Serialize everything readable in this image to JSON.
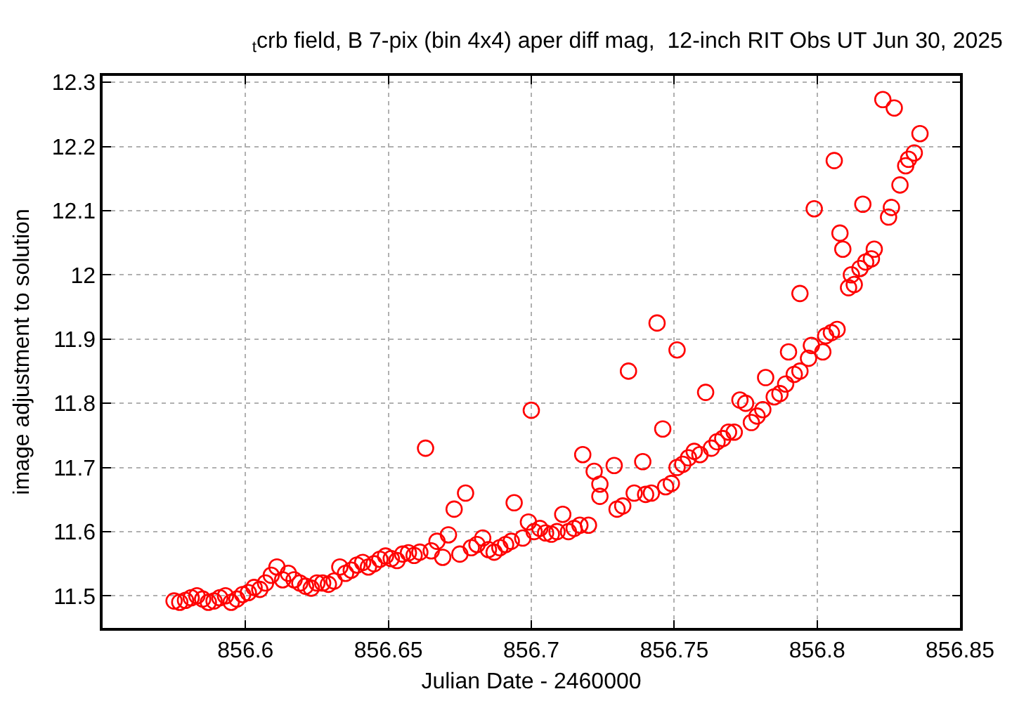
{
  "chart_data": {
    "type": "scatter",
    "title": "$_{t}$crb field, B 7-pix (bin 4x4) aper diff mag,  12-inch RIT Obs UT Jun 30, 2025",
    "xlabel": "Julian Date - 2460000",
    "ylabel": "image adjustment to solution",
    "x": [
      856.575,
      856.577,
      856.579,
      856.581,
      856.583,
      856.585,
      856.587,
      856.589,
      856.591,
      856.593,
      856.595,
      856.597,
      856.599,
      856.601,
      856.603,
      856.605,
      856.607,
      856.609,
      856.611,
      856.613,
      856.615,
      856.617,
      856.619,
      856.621,
      856.623,
      856.625,
      856.627,
      856.629,
      856.631,
      856.633,
      856.635,
      856.637,
      856.639,
      856.641,
      856.643,
      856.645,
      856.647,
      856.649,
      856.651,
      856.653,
      856.655,
      856.657,
      856.659,
      856.661,
      856.663,
      856.665,
      856.667,
      856.669,
      856.671,
      856.673,
      856.675,
      856.677,
      856.679,
      856.681,
      856.683,
      856.685,
      856.687,
      856.689,
      856.691,
      856.693,
      856.694,
      856.697,
      856.699,
      856.7,
      856.701,
      856.703,
      856.705,
      856.707,
      856.709,
      856.711,
      856.713,
      856.715,
      856.717,
      856.718,
      856.72,
      856.722,
      856.724,
      856.724,
      856.729,
      856.73,
      856.732,
      856.734,
      856.736,
      856.739,
      856.74,
      856.742,
      856.744,
      856.746,
      856.747,
      856.749,
      856.751,
      856.751,
      856.753,
      856.755,
      856.757,
      856.759,
      856.761,
      856.763,
      856.765,
      856.767,
      856.769,
      856.771,
      856.773,
      856.775,
      856.777,
      856.779,
      856.781,
      856.782,
      856.785,
      856.787,
      856.789,
      856.79,
      856.792,
      856.794,
      856.794,
      856.797,
      856.798,
      856.799,
      856.802,
      856.803,
      856.805,
      856.806,
      856.807,
      856.808,
      856.809,
      856.811,
      856.812,
      856.813,
      856.815,
      856.816,
      856.817,
      856.819,
      856.82,
      856.823,
      856.825,
      856.826,
      856.827,
      856.829,
      856.831,
      856.832,
      856.834,
      856.836
    ],
    "values": [
      11.492,
      11.49,
      11.493,
      11.497,
      11.5,
      11.495,
      11.49,
      11.492,
      11.497,
      11.5,
      11.49,
      11.495,
      11.502,
      11.505,
      11.513,
      11.51,
      11.52,
      11.532,
      11.545,
      11.525,
      11.535,
      11.525,
      11.52,
      11.515,
      11.512,
      11.52,
      11.52,
      11.518,
      11.523,
      11.545,
      11.535,
      11.54,
      11.548,
      11.552,
      11.545,
      11.55,
      11.557,
      11.562,
      11.558,
      11.555,
      11.565,
      11.567,
      11.563,
      11.568,
      11.73,
      11.57,
      11.585,
      11.56,
      11.595,
      11.635,
      11.565,
      11.66,
      11.575,
      11.58,
      11.59,
      11.572,
      11.568,
      11.575,
      11.58,
      11.585,
      11.645,
      11.59,
      11.615,
      11.789,
      11.6,
      11.605,
      11.598,
      11.596,
      11.6,
      11.627,
      11.6,
      11.605,
      11.61,
      11.72,
      11.61,
      11.694,
      11.655,
      11.674,
      11.703,
      11.635,
      11.64,
      11.85,
      11.66,
      11.709,
      11.658,
      11.66,
      11.925,
      11.76,
      11.67,
      11.675,
      11.7,
      11.883,
      11.705,
      11.715,
      11.725,
      11.72,
      11.817,
      11.73,
      11.74,
      11.745,
      11.755,
      11.755,
      11.805,
      11.8,
      11.77,
      11.78,
      11.79,
      11.84,
      11.81,
      11.815,
      11.83,
      11.88,
      11.845,
      11.85,
      11.971,
      11.87,
      11.89,
      12.103,
      11.88,
      11.905,
      11.91,
      12.178,
      11.915,
      12.065,
      12.04,
      11.98,
      12.0,
      11.985,
      12.01,
      12.11,
      12.02,
      12.025,
      12.04,
      12.273,
      12.09,
      12.105,
      12.26,
      12.14,
      12.17,
      12.18,
      12.19,
      12.22
    ],
    "color": "#ff0000",
    "marker": "circle",
    "grid": true,
    "legend": false,
    "xlim": [
      856.55,
      856.85
    ],
    "xticks": [
      856.6,
      856.65,
      856.7,
      856.75,
      856.8,
      856.85
    ],
    "ylim": [
      11.45,
      12.31
    ],
    "yticks": [
      11.5,
      11.6,
      11.7,
      11.8,
      11.9,
      12,
      12.1,
      12.2,
      12.3
    ]
  }
}
